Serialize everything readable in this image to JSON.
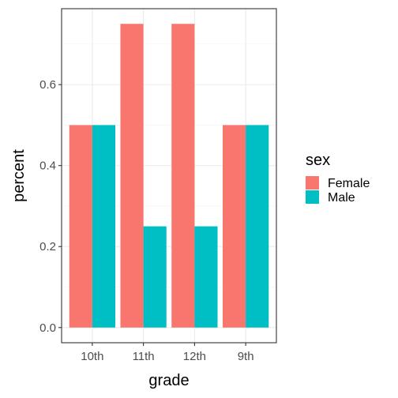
{
  "chart_data": {
    "type": "bar",
    "xlabel": "grade",
    "ylabel": "percent",
    "categories": [
      "10th",
      "11th",
      "12th",
      "9th"
    ],
    "series": [
      {
        "name": "Female",
        "values": [
          0.5,
          0.75,
          0.75,
          0.5
        ]
      },
      {
        "name": "Male",
        "values": [
          0.5,
          0.25,
          0.25,
          0.5
        ]
      }
    ],
    "ylim": [
      -0.0375,
      0.7875
    ],
    "yticks": [
      0.0,
      0.2,
      0.4,
      0.6
    ],
    "ytick_labels": [
      "0.0",
      "0.2",
      "0.4",
      "0.6"
    ],
    "grid": true,
    "theme": "bw",
    "legend": {
      "title": "sex",
      "position": "right"
    },
    "colors": {
      "Female": "#F8766D",
      "Male": "#00BFC4"
    }
  }
}
